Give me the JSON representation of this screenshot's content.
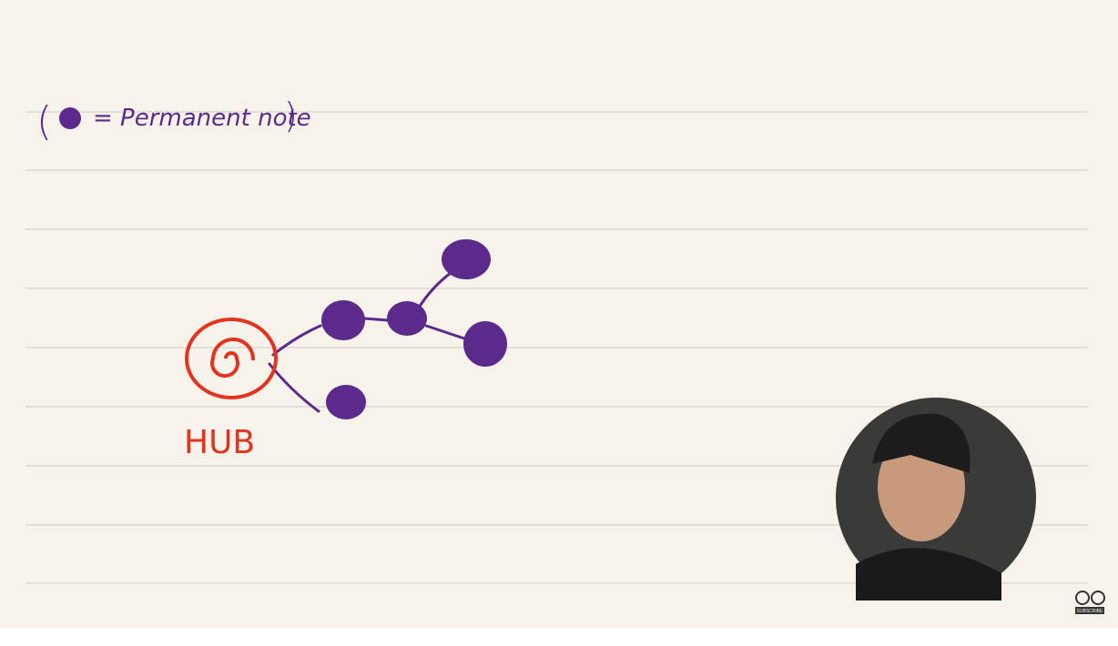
{
  "legend": {
    "open": "(",
    "text": "= Permanent note",
    "close": ")"
  },
  "hub": {
    "label": "HUB"
  },
  "badge": {
    "label": "SUBSCRIBE"
  }
}
